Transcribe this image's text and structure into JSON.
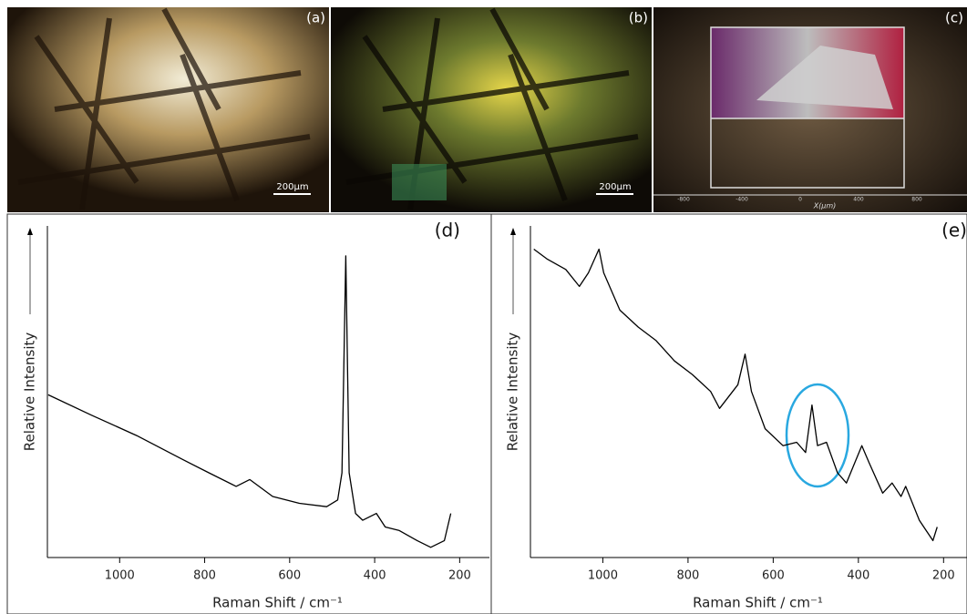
{
  "images": [
    {
      "label": "(a)",
      "scale_bar": "200µm"
    },
    {
      "label": "(b)",
      "scale_bar": "200µm"
    },
    {
      "label": "(c)",
      "axis_label": "X(µm)",
      "ticks": [
        -800,
        -400,
        0,
        400,
        800
      ]
    }
  ],
  "chart_data": [
    {
      "type": "line",
      "label": "(d)",
      "x_label": "Raman Shift / cm⁻¹",
      "y_label": "Relative Intensity",
      "color": "#000000",
      "x": [
        1168,
        1066,
        960,
        853,
        790,
        726,
        694,
        640,
        577,
        513,
        487,
        477,
        468,
        460,
        445,
        428,
        396,
        375,
        343,
        300,
        268,
        236,
        221
      ],
      "values": [
        48,
        42,
        36,
        29,
        25,
        21,
        23,
        18,
        16,
        15,
        17,
        25,
        89,
        25,
        13,
        11,
        13,
        9,
        8,
        5,
        3,
        5,
        13
      ],
      "xlim": [
        1170,
        130
      ],
      "ylim": [
        0,
        100
      ],
      "xticks": [
        1000,
        800,
        600,
        400,
        200
      ]
    },
    {
      "type": "line",
      "label": "(e)",
      "x_label": "Raman Shift / cm⁻¹",
      "y_label": "Relative Intensity",
      "color": "#000000",
      "x": [
        1162,
        1130,
        1087,
        1055,
        1034,
        1009,
        998,
        960,
        917,
        875,
        832,
        790,
        747,
        726,
        683,
        666,
        651,
        619,
        577,
        545,
        524,
        509,
        496,
        475,
        449,
        428,
        392,
        375,
        343,
        321,
        300,
        289,
        257,
        225,
        215
      ],
      "values": [
        91,
        88,
        85,
        80,
        84,
        91,
        84,
        73,
        68,
        64,
        58,
        54,
        49,
        44,
        51,
        60,
        49,
        38,
        33,
        34,
        31,
        45,
        33,
        34,
        25,
        22,
        33,
        28,
        19,
        22,
        18,
        21,
        11,
        5,
        9
      ],
      "xlim": [
        1170,
        145
      ],
      "ylim": [
        0,
        100
      ],
      "xticks": [
        1000,
        800,
        600,
        400,
        200
      ]
    }
  ]
}
